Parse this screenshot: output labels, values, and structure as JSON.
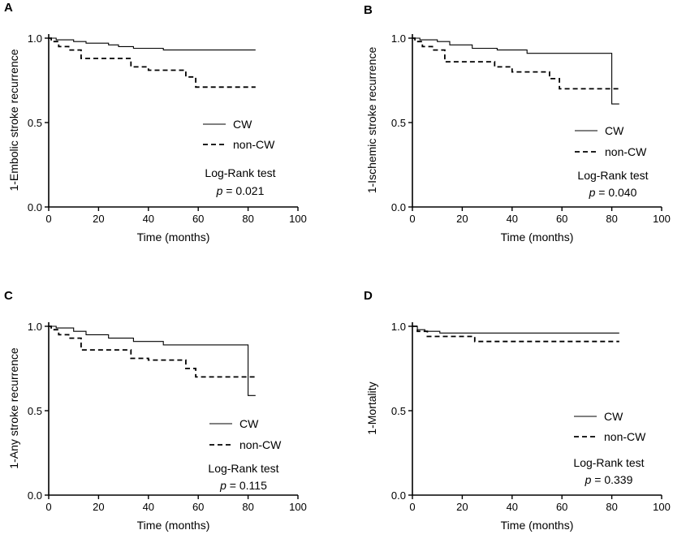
{
  "colors": {
    "line": "#000000",
    "background": "#ffffff"
  },
  "chart_data": [
    {
      "type": "line",
      "panel_label": "A",
      "ylabel": "1-Embolic stroke recurrence",
      "xlabel": "Time (months)",
      "xlim": [
        0,
        100
      ],
      "ylim": [
        0,
        1.0
      ],
      "x_ticks": [
        "0",
        "20",
        "40",
        "60",
        "80",
        "100"
      ],
      "y_ticks": [
        "0.0",
        "0.5",
        "1.0"
      ],
      "series": [
        {
          "name": "CW",
          "style": "solid",
          "points": [
            [
              0,
              1.0
            ],
            [
              3,
              1.0
            ],
            [
              3,
              0.99
            ],
            [
              10,
              0.99
            ],
            [
              10,
              0.98
            ],
            [
              15,
              0.98
            ],
            [
              15,
              0.97
            ],
            [
              24,
              0.97
            ],
            [
              24,
              0.96
            ],
            [
              28,
              0.96
            ],
            [
              28,
              0.95
            ],
            [
              34,
              0.95
            ],
            [
              34,
              0.94
            ],
            [
              46,
              0.94
            ],
            [
              46,
              0.93
            ],
            [
              83,
              0.93
            ]
          ]
        },
        {
          "name": "non-CW",
          "style": "dashed",
          "points": [
            [
              0,
              1.0
            ],
            [
              1,
              1.0
            ],
            [
              1,
              0.98
            ],
            [
              4,
              0.98
            ],
            [
              4,
              0.95
            ],
            [
              8,
              0.95
            ],
            [
              8,
              0.93
            ],
            [
              13,
              0.93
            ],
            [
              13,
              0.88
            ],
            [
              33,
              0.88
            ],
            [
              33,
              0.83
            ],
            [
              40,
              0.83
            ],
            [
              40,
              0.81
            ],
            [
              55,
              0.81
            ],
            [
              55,
              0.77
            ],
            [
              59,
              0.77
            ],
            [
              59,
              0.71
            ],
            [
              83,
              0.71
            ]
          ]
        }
      ],
      "legend": [
        "CW",
        "non-CW"
      ],
      "annotation": {
        "test": "Log-Rank test",
        "p_symbol": "p",
        "p_value": " = 0.021"
      }
    },
    {
      "type": "line",
      "panel_label": "B",
      "ylabel": "1-Ischemic stroke recurrence",
      "xlabel": "Time (months)",
      "xlim": [
        0,
        100
      ],
      "ylim": [
        0,
        1.0
      ],
      "x_ticks": [
        "0",
        "20",
        "40",
        "60",
        "80",
        "100"
      ],
      "y_ticks": [
        "0.0",
        "0.5",
        "1.0"
      ],
      "series": [
        {
          "name": "CW",
          "style": "solid",
          "points": [
            [
              0,
              1.0
            ],
            [
              3,
              1.0
            ],
            [
              3,
              0.99
            ],
            [
              10,
              0.99
            ],
            [
              10,
              0.98
            ],
            [
              15,
              0.98
            ],
            [
              15,
              0.96
            ],
            [
              24,
              0.96
            ],
            [
              24,
              0.94
            ],
            [
              34,
              0.94
            ],
            [
              34,
              0.93
            ],
            [
              46,
              0.93
            ],
            [
              46,
              0.91
            ],
            [
              80,
              0.91
            ],
            [
              80,
              0.61
            ],
            [
              83,
              0.61
            ]
          ]
        },
        {
          "name": "non-CW",
          "style": "dashed",
          "points": [
            [
              0,
              1.0
            ],
            [
              1,
              1.0
            ],
            [
              1,
              0.98
            ],
            [
              4,
              0.98
            ],
            [
              4,
              0.95
            ],
            [
              8,
              0.95
            ],
            [
              8,
              0.93
            ],
            [
              13,
              0.93
            ],
            [
              13,
              0.86
            ],
            [
              33,
              0.86
            ],
            [
              33,
              0.83
            ],
            [
              40,
              0.83
            ],
            [
              40,
              0.8
            ],
            [
              55,
              0.8
            ],
            [
              55,
              0.76
            ],
            [
              59,
              0.76
            ],
            [
              59,
              0.7
            ],
            [
              83,
              0.7
            ]
          ]
        }
      ],
      "legend": [
        "CW",
        "non-CW"
      ],
      "annotation": {
        "test": "Log-Rank test",
        "p_symbol": "p",
        "p_value": " = 0.040"
      }
    },
    {
      "type": "line",
      "panel_label": "C",
      "ylabel": "1-Any stroke recurrence",
      "xlabel": "Time (months)",
      "xlim": [
        0,
        100
      ],
      "ylim": [
        0,
        1.0
      ],
      "x_ticks": [
        "0",
        "20",
        "40",
        "60",
        "80",
        "100"
      ],
      "y_ticks": [
        "0.0",
        "0.5",
        "1.0"
      ],
      "series": [
        {
          "name": "CW",
          "style": "solid",
          "points": [
            [
              0,
              1.0
            ],
            [
              3,
              1.0
            ],
            [
              3,
              0.99
            ],
            [
              10,
              0.99
            ],
            [
              10,
              0.97
            ],
            [
              15,
              0.97
            ],
            [
              15,
              0.95
            ],
            [
              24,
              0.95
            ],
            [
              24,
              0.93
            ],
            [
              34,
              0.93
            ],
            [
              34,
              0.91
            ],
            [
              46,
              0.91
            ],
            [
              46,
              0.89
            ],
            [
              80,
              0.89
            ],
            [
              80,
              0.59
            ],
            [
              83,
              0.59
            ]
          ]
        },
        {
          "name": "non-CW",
          "style": "dashed",
          "points": [
            [
              0,
              1.0
            ],
            [
              1,
              1.0
            ],
            [
              1,
              0.98
            ],
            [
              4,
              0.98
            ],
            [
              4,
              0.95
            ],
            [
              8,
              0.95
            ],
            [
              8,
              0.93
            ],
            [
              13,
              0.93
            ],
            [
              13,
              0.86
            ],
            [
              33,
              0.86
            ],
            [
              33,
              0.81
            ],
            [
              40,
              0.81
            ],
            [
              40,
              0.8
            ],
            [
              55,
              0.8
            ],
            [
              55,
              0.75
            ],
            [
              59,
              0.75
            ],
            [
              59,
              0.7
            ],
            [
              83,
              0.7
            ]
          ]
        }
      ],
      "legend": [
        "CW",
        "non-CW"
      ],
      "annotation": {
        "test": "Log-Rank test",
        "p_symbol": "p",
        "p_value": " = 0.115"
      }
    },
    {
      "type": "line",
      "panel_label": "D",
      "ylabel": "1-Mortality",
      "xlabel": "Time (months)",
      "xlim": [
        0,
        100
      ],
      "ylim": [
        0,
        1.0
      ],
      "x_ticks": [
        "0",
        "20",
        "40",
        "60",
        "80",
        "100"
      ],
      "y_ticks": [
        "0.0",
        "0.5",
        "1.0"
      ],
      "series": [
        {
          "name": "CW",
          "style": "solid",
          "points": [
            [
              0,
              1.0
            ],
            [
              2,
              1.0
            ],
            [
              2,
              0.98
            ],
            [
              5,
              0.98
            ],
            [
              5,
              0.97
            ],
            [
              11,
              0.97
            ],
            [
              11,
              0.96
            ],
            [
              83,
              0.96
            ]
          ]
        },
        {
          "name": "non-CW",
          "style": "dashed",
          "points": [
            [
              0,
              1.0
            ],
            [
              2,
              1.0
            ],
            [
              2,
              0.97
            ],
            [
              6,
              0.97
            ],
            [
              6,
              0.94
            ],
            [
              25,
              0.94
            ],
            [
              25,
              0.91
            ],
            [
              83,
              0.91
            ]
          ]
        }
      ],
      "legend": [
        "CW",
        "non-CW"
      ],
      "annotation": {
        "test": "Log-Rank test",
        "p_symbol": "p",
        "p_value": " = 0.339"
      }
    }
  ]
}
